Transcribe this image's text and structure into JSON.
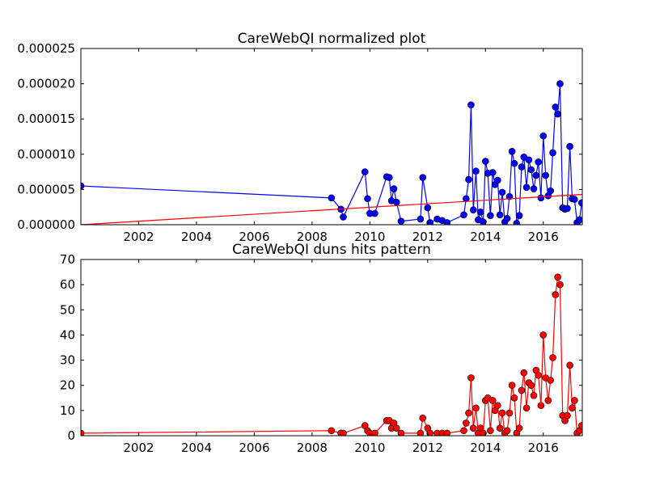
{
  "chart_data": [
    {
      "type": "line",
      "title": "CareWebQI normalized plot",
      "xlabel": "",
      "ylabel": "",
      "xlim": [
        2000.0,
        2017.35
      ],
      "ylim": [
        0,
        2.5e-05
      ],
      "x_ticks": [
        2002,
        2004,
        2006,
        2008,
        2010,
        2012,
        2014,
        2016
      ],
      "x_tick_labels": [
        "2002",
        "2004",
        "2006",
        "2008",
        "2010",
        "2012",
        "2014",
        "2016"
      ],
      "y_ticks": [
        0,
        5e-06,
        1e-05,
        1.5e-05,
        2e-05,
        2.5e-05
      ],
      "y_tick_labels": [
        "0.000000",
        "0.000005",
        "0.000010",
        "0.000015",
        "0.000020",
        "0.000025"
      ],
      "grid": false,
      "colors": {
        "series": "#0000ff",
        "trend": "#ff0000"
      },
      "series": [
        {
          "style": "line-markers",
          "x": [
            2000.0,
            2008.67,
            2009.0,
            2009.08,
            2009.83,
            2009.92,
            2010.0,
            2010.17,
            2010.58,
            2010.67,
            2010.75,
            2010.83,
            2010.92,
            2011.08,
            2011.75,
            2011.83,
            2012.0,
            2012.08,
            2012.33,
            2012.5,
            2012.67,
            2013.25,
            2013.33,
            2013.42,
            2013.5,
            2013.58,
            2013.67,
            2013.75,
            2013.83,
            2013.92,
            2014.0,
            2014.08,
            2014.17,
            2014.25,
            2014.33,
            2014.42,
            2014.5,
            2014.58,
            2014.67,
            2014.75,
            2014.83,
            2014.92,
            2015.0,
            2015.08,
            2015.17,
            2015.25,
            2015.33,
            2015.42,
            2015.5,
            2015.58,
            2015.67,
            2015.75,
            2015.83,
            2015.92,
            2016.0,
            2016.08,
            2016.17,
            2016.25,
            2016.33,
            2016.42,
            2016.5,
            2016.58,
            2016.67,
            2016.75,
            2016.83,
            2016.92,
            2017.0,
            2017.08,
            2017.17,
            2017.25,
            2017.33
          ],
          "y": [
            5.5e-06,
            3.8e-06,
            2.2e-06,
            1.1e-06,
            7.5e-06,
            3.7e-06,
            1.6e-06,
            1.6e-06,
            6.8e-06,
            6.7e-06,
            3.4e-06,
            5.1e-06,
            3.2e-06,
            5e-07,
            8e-07,
            6.7e-06,
            2.4e-06,
            3e-07,
            8e-07,
            6e-07,
            3e-07,
            1.4e-06,
            3.7e-06,
            6.4e-06,
            1.7e-05,
            2.1e-06,
            7.6e-06,
            7e-07,
            1.8e-06,
            4e-07,
            9e-06,
            7.3e-06,
            1.3e-06,
            7.4e-06,
            5.7e-06,
            6.3e-06,
            1.4e-06,
            4.6e-06,
            4e-07,
            9e-07,
            4e-06,
            1.04e-05,
            8.7e-06,
            2e-07,
            1.3e-06,
            8.2e-06,
            9.6e-06,
            5.3e-06,
            9.2e-06,
            7.8e-06,
            5.1e-06,
            7e-06,
            8.9e-06,
            3.8e-06,
            1.26e-05,
            7e-06,
            4.1e-06,
            4.8e-06,
            1.02e-05,
            1.67e-05,
            1.57e-05,
            2e-05,
            2.4e-06,
            2.2e-06,
            2.3e-06,
            1.11e-05,
            3.7e-06,
            3.6e-06,
            3e-07,
            7e-07,
            3.1e-06
          ]
        },
        {
          "style": "line",
          "x": [
            2000.0,
            2017.35
          ],
          "y": [
            0.0,
            4.3e-06
          ]
        }
      ]
    },
    {
      "type": "line",
      "title": "CareWebQI duns hits pattern",
      "xlabel": "",
      "ylabel": "",
      "xlim": [
        2000.0,
        2017.35
      ],
      "ylim": [
        0,
        70
      ],
      "x_ticks": [
        2002,
        2004,
        2006,
        2008,
        2010,
        2012,
        2014,
        2016
      ],
      "x_tick_labels": [
        "2002",
        "2004",
        "2006",
        "2008",
        "2010",
        "2012",
        "2014",
        "2016"
      ],
      "y_ticks": [
        0,
        10,
        20,
        30,
        40,
        50,
        60,
        70
      ],
      "y_tick_labels": [
        "0",
        "10",
        "20",
        "30",
        "40",
        "50",
        "60",
        "70"
      ],
      "grid": false,
      "colors": {
        "series": "#ff0000"
      },
      "series": [
        {
          "style": "line-markers",
          "x": [
            2000.0,
            2008.67,
            2009.0,
            2009.08,
            2009.83,
            2009.92,
            2010.0,
            2010.17,
            2010.58,
            2010.67,
            2010.75,
            2010.83,
            2010.92,
            2011.08,
            2011.75,
            2011.83,
            2012.0,
            2012.08,
            2012.33,
            2012.5,
            2012.67,
            2013.25,
            2013.33,
            2013.42,
            2013.5,
            2013.58,
            2013.67,
            2013.75,
            2013.83,
            2013.92,
            2014.0,
            2014.08,
            2014.17,
            2014.25,
            2014.33,
            2014.42,
            2014.5,
            2014.58,
            2014.67,
            2014.75,
            2014.83,
            2014.92,
            2015.0,
            2015.08,
            2015.17,
            2015.25,
            2015.33,
            2015.42,
            2015.5,
            2015.58,
            2015.67,
            2015.75,
            2015.83,
            2015.92,
            2016.0,
            2016.08,
            2016.17,
            2016.25,
            2016.33,
            2016.42,
            2016.5,
            2016.58,
            2016.67,
            2016.75,
            2016.83,
            2016.92,
            2017.0,
            2017.08,
            2017.17,
            2017.25,
            2017.33
          ],
          "y": [
            1,
            2,
            1,
            1,
            4,
            2,
            1,
            1,
            6,
            6,
            3,
            5,
            3,
            1,
            1,
            7,
            3,
            1,
            1,
            1,
            1,
            2,
            5,
            9,
            23,
            3,
            11,
            1,
            3,
            1,
            14,
            15,
            2,
            14,
            10,
            12,
            3,
            9,
            1,
            2,
            9,
            20,
            15,
            1,
            3,
            18,
            25,
            11,
            21,
            20,
            16,
            26,
            24,
            12,
            40,
            23,
            14,
            22,
            31,
            56,
            63,
            60,
            8,
            6,
            8,
            28,
            11,
            14,
            1,
            2,
            4
          ]
        }
      ]
    }
  ]
}
